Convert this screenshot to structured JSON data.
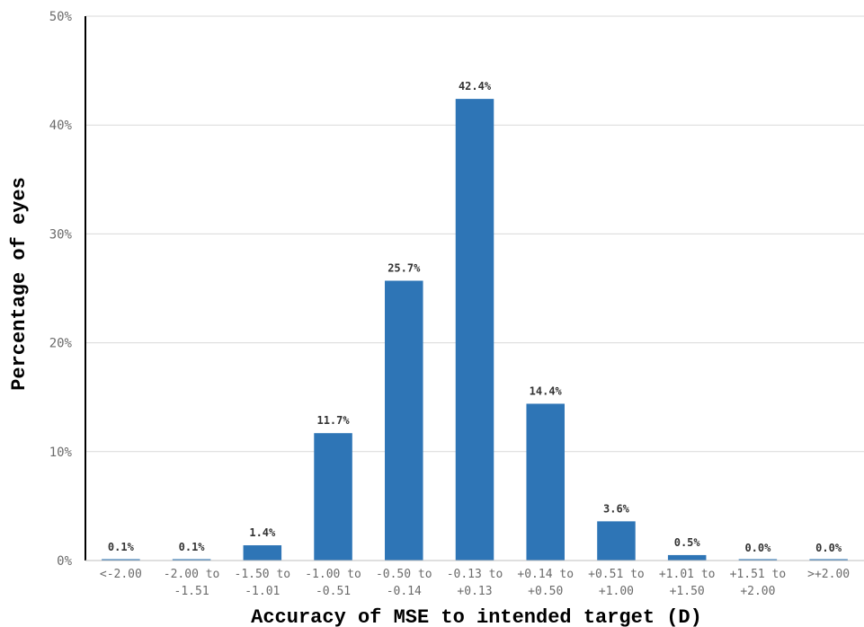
{
  "chart_data": {
    "type": "bar",
    "xlabel": "Accuracy of MSE to intended target (D)",
    "ylabel": "Percentage of eyes",
    "ylim": [
      0,
      50
    ],
    "yticks": [
      {
        "value": 0,
        "label": "0%"
      },
      {
        "value": 10,
        "label": "10%"
      },
      {
        "value": 20,
        "label": "20%"
      },
      {
        "value": 30,
        "label": "30%"
      },
      {
        "value": 40,
        "label": "40%"
      },
      {
        "value": 50,
        "label": "50%"
      }
    ],
    "grid": true,
    "bar_color": "#2e75b6",
    "categories": [
      {
        "line1": "<-2.00",
        "line2": ""
      },
      {
        "line1": "-2.00 to",
        "line2": "-1.51"
      },
      {
        "line1": "-1.50 to",
        "line2": "-1.01"
      },
      {
        "line1": "-1.00 to",
        "line2": "-0.51"
      },
      {
        "line1": "-0.50 to",
        "line2": "-0.14"
      },
      {
        "line1": "-0.13 to",
        "line2": "+0.13"
      },
      {
        "line1": "+0.14 to",
        "line2": "+0.50"
      },
      {
        "line1": "+0.51 to",
        "line2": "+1.00"
      },
      {
        "line1": "+1.01 to",
        "line2": "+1.50"
      },
      {
        "line1": "+1.51 to",
        "line2": "+2.00"
      },
      {
        "line1": ">+2.00",
        "line2": ""
      }
    ],
    "values": [
      0.1,
      0.1,
      1.4,
      11.7,
      25.7,
      42.4,
      14.4,
      3.6,
      0.5,
      0.0,
      0.0
    ],
    "data_labels": [
      "0.1%",
      "0.1%",
      "1.4%",
      "11.7%",
      "25.7%",
      "42.4%",
      "14.4%",
      "3.6%",
      "0.5%",
      "0.0%",
      "0.0%"
    ]
  }
}
